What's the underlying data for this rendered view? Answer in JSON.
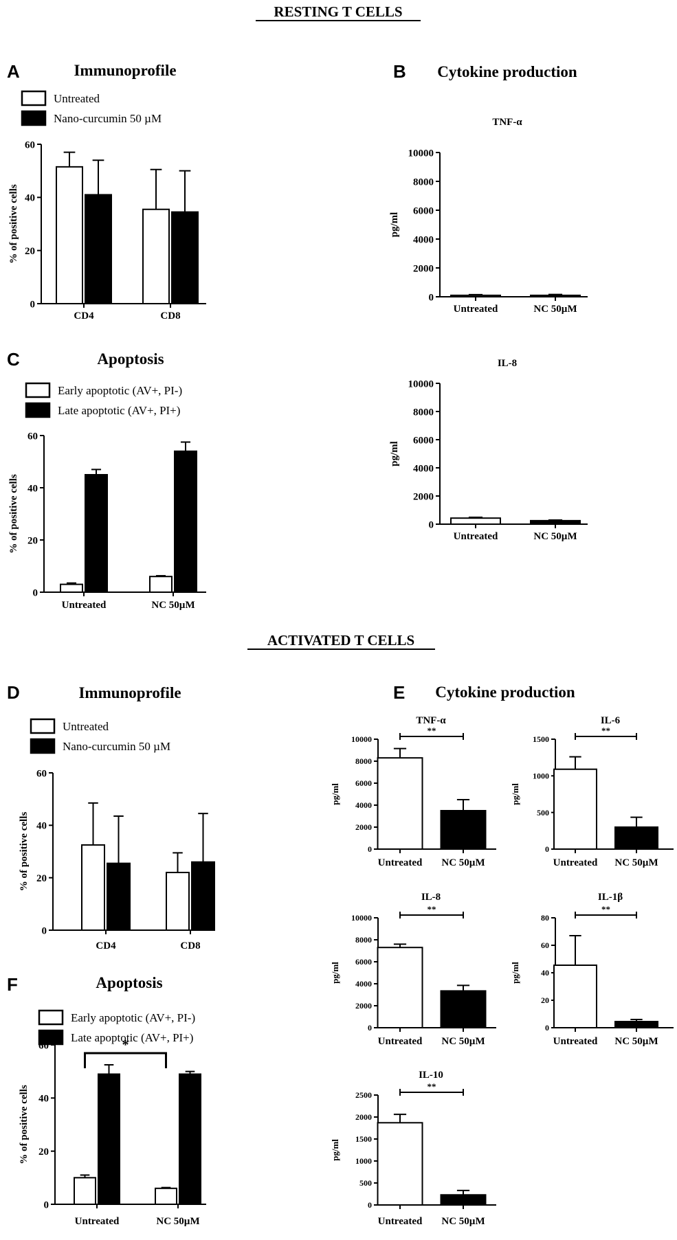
{
  "sections": {
    "resting": "RESTING T CELLS",
    "activated": "ACTIVATED T CELLS"
  },
  "panel_letters": {
    "A": "A",
    "B": "B",
    "C": "C",
    "D": "D",
    "E": "E",
    "F": "F"
  },
  "panel_titles": {
    "A": "Immunoprofile",
    "B": "Cytokine production",
    "C": "Apoptosis",
    "D": "Immunoprofile",
    "E": "Cytokine production",
    "F": "Apoptosis"
  },
  "legends": {
    "immuno": [
      {
        "label": "Untreated",
        "fill": "#ffffff"
      },
      {
        "label": "Nano-curcumin 50 µM",
        "fill": "#000000"
      }
    ],
    "apoptosis": [
      {
        "label": "Early apoptotic (AV+, PI-)",
        "fill": "#ffffff"
      },
      {
        "label": "Late apoptotic   (AV+, PI+)",
        "fill": "#000000"
      }
    ]
  },
  "colors": {
    "untreated": "#ffffff",
    "treated": "#000000",
    "stroke": "#000000"
  },
  "chart_data": [
    {
      "id": "A",
      "type": "bar",
      "ylabel": "% of positive cells",
      "categories": [
        "CD4",
        "CD8"
      ],
      "ylim": [
        0,
        60
      ],
      "yticks": [
        0,
        20,
        40,
        60
      ],
      "series": [
        {
          "name": "Untreated",
          "values": [
            51.5,
            35.5
          ],
          "errors": [
            5.5,
            15.0
          ]
        },
        {
          "name": "Nano-curcumin 50 µM",
          "values": [
            41.0,
            34.5
          ],
          "errors": [
            13.0,
            15.5
          ]
        }
      ]
    },
    {
      "id": "B1",
      "type": "bar",
      "title": "TNF-α",
      "ylabel": "pg/ml",
      "categories": [
        "Untreated",
        "NC 50µM"
      ],
      "ylim": [
        0,
        10000
      ],
      "yticks": [
        0,
        2000,
        4000,
        6000,
        8000,
        10000
      ],
      "values": [
        100,
        100
      ],
      "errors": [
        50,
        60
      ]
    },
    {
      "id": "B2",
      "type": "bar",
      "title": "IL-8",
      "ylabel": "pg/ml",
      "categories": [
        "Untreated",
        "NC 50µM"
      ],
      "ylim": [
        0,
        10000
      ],
      "yticks": [
        0,
        2000,
        4000,
        6000,
        8000,
        10000
      ],
      "values": [
        430,
        250
      ],
      "errors": [
        60,
        40
      ]
    },
    {
      "id": "C",
      "type": "bar",
      "ylabel": "% of positive cells",
      "categories": [
        "Untreated",
        "NC 50µM"
      ],
      "ylim": [
        0,
        60
      ],
      "yticks": [
        0,
        20,
        40,
        60
      ],
      "series": [
        {
          "name": "Early apoptotic (AV+, PI-)",
          "values": [
            3.0,
            6.0
          ],
          "errors": [
            0.5,
            0.3
          ]
        },
        {
          "name": "Late apoptotic (AV+, PI+)",
          "values": [
            45.0,
            54.0
          ],
          "errors": [
            2.0,
            3.5
          ]
        }
      ]
    },
    {
      "id": "D",
      "type": "bar",
      "ylabel": "% of positive cells",
      "categories": [
        "CD4",
        "CD8"
      ],
      "ylim": [
        0,
        60
      ],
      "yticks": [
        0,
        20,
        40,
        60
      ],
      "series": [
        {
          "name": "Untreated",
          "values": [
            32.5,
            22.0
          ],
          "errors": [
            16.0,
            7.5
          ]
        },
        {
          "name": "Nano-curcumin 50 µM",
          "values": [
            25.5,
            26.0
          ],
          "errors": [
            18.0,
            18.5
          ]
        }
      ]
    },
    {
      "id": "E1",
      "type": "bar",
      "title": "TNF-α",
      "ylabel": "pg/ml",
      "categories": [
        "Untreated",
        "NC 50µM"
      ],
      "ylim": [
        0,
        10000
      ],
      "yticks": [
        0,
        2000,
        4000,
        6000,
        8000,
        10000
      ],
      "values": [
        8300,
        3500
      ],
      "errors": [
        850,
        1000
      ],
      "significance": "**"
    },
    {
      "id": "E2",
      "type": "bar",
      "title": "IL-6",
      "ylabel": "pg/ml",
      "categories": [
        "Untreated",
        "NC 50µM"
      ],
      "ylim": [
        0,
        1500
      ],
      "yticks": [
        0,
        500,
        1000,
        1500
      ],
      "values": [
        1090,
        300
      ],
      "errors": [
        170,
        135
      ],
      "significance": "**"
    },
    {
      "id": "E3",
      "type": "bar",
      "title": "IL-8",
      "ylabel": "pg/ml",
      "categories": [
        "Untreated",
        "NC 50µM"
      ],
      "ylim": [
        0,
        10000
      ],
      "yticks": [
        0,
        2000,
        4000,
        6000,
        8000,
        10000
      ],
      "values": [
        7300,
        3350
      ],
      "errors": [
        300,
        500
      ],
      "significance": "**"
    },
    {
      "id": "E4",
      "type": "bar",
      "title": "IL-1β",
      "ylabel": "pg/ml",
      "categories": [
        "Untreated",
        "NC 50µM"
      ],
      "ylim": [
        0,
        80
      ],
      "yticks": [
        0,
        20,
        40,
        60,
        80
      ],
      "values": [
        45.5,
        4.5
      ],
      "errors": [
        21.5,
        1.5
      ],
      "significance": "**"
    },
    {
      "id": "E5",
      "type": "bar",
      "title": "IL-10",
      "ylabel": "pg/ml",
      "categories": [
        "Untreated",
        "NC 50µM"
      ],
      "ylim": [
        0,
        2500
      ],
      "yticks": [
        0,
        500,
        1000,
        1500,
        2000,
        2500
      ],
      "values": [
        1870,
        230
      ],
      "errors": [
        190,
        100
      ],
      "significance": "**"
    },
    {
      "id": "F",
      "type": "bar",
      "ylabel": "% of positive cells",
      "categories": [
        "Untreated",
        "NC 50µM"
      ],
      "ylim": [
        0,
        60
      ],
      "yticks": [
        0,
        20,
        40,
        60
      ],
      "series": [
        {
          "name": "Early apoptotic (AV+, PI-)",
          "values": [
            10.0,
            6.0
          ],
          "errors": [
            1.0,
            0.3
          ]
        },
        {
          "name": "Late apoptotic (AV+, PI+)",
          "values": [
            49.0,
            49.0
          ],
          "errors": [
            3.5,
            1.0
          ]
        }
      ],
      "significance": "*"
    }
  ]
}
